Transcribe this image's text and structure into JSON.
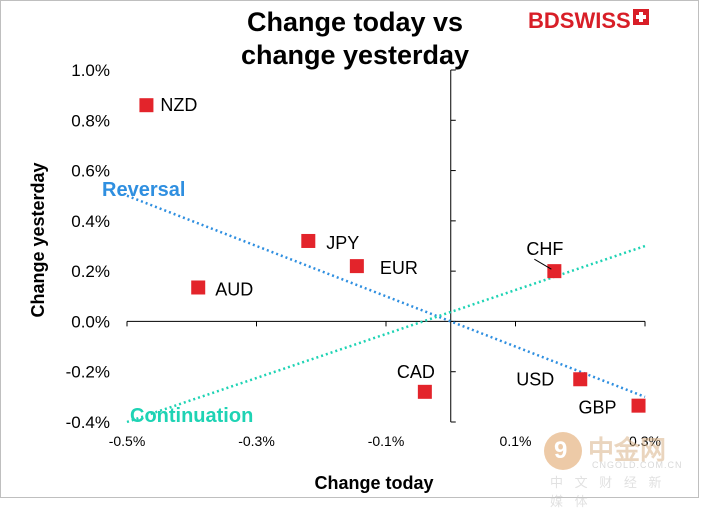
{
  "title_line1": "Change today vs",
  "title_line2": "change yesterday",
  "brand": {
    "bd": "BD",
    "swiss": "SWISS",
    "color": "#d81e27"
  },
  "watermark": {
    "name": "中金网",
    "domain": "CNGOLD.COM.CN",
    "sub": "中 文 财 经 新 媒 体",
    "glyph": "9"
  },
  "chart_data": {
    "type": "scatter",
    "title": "Change today vs change yesterday",
    "xlabel": "Change today",
    "ylabel": "Change yesterday",
    "xlim": [
      -0.5,
      0.3
    ],
    "ylim": [
      -0.4,
      1.0
    ],
    "x_ticks": [
      -0.5,
      -0.3,
      -0.1,
      0.1,
      0.3
    ],
    "x_tick_labels": [
      "-0.5%",
      "-0.3%",
      "-0.1%",
      "0.1%",
      "0.3%"
    ],
    "y_ticks": [
      -0.4,
      -0.2,
      0.0,
      0.2,
      0.4,
      0.6,
      0.8,
      1.0
    ],
    "y_tick_labels": [
      "-0.4%",
      "-0.2%",
      "0.0%",
      "0.2%",
      "0.4%",
      "0.6%",
      "0.8%",
      "1.0%"
    ],
    "marker_color": "#e3242b",
    "points": [
      {
        "label": "NZD",
        "x": -0.47,
        "y": 0.86
      },
      {
        "label": "JPY",
        "x": -0.22,
        "y": 0.32
      },
      {
        "label": "EUR",
        "x": -0.145,
        "y": 0.22
      },
      {
        "label": "AUD",
        "x": -0.39,
        "y": 0.135
      },
      {
        "label": "CHF",
        "x": 0.16,
        "y": 0.2
      },
      {
        "label": "CAD",
        "x": -0.04,
        "y": -0.28
      },
      {
        "label": "USD",
        "x": 0.2,
        "y": -0.23
      },
      {
        "label": "GBP",
        "x": 0.29,
        "y": -0.335
      }
    ],
    "lines": [
      {
        "name": "Reversal",
        "color": "#2f8fe0",
        "x": [
          -0.5,
          0.3
        ],
        "y": [
          0.5,
          -0.3
        ]
      },
      {
        "name": "Continuation",
        "color": "#1ed3b4",
        "x": [
          -0.5,
          0.3
        ],
        "y": [
          -0.4,
          0.3
        ]
      }
    ]
  }
}
